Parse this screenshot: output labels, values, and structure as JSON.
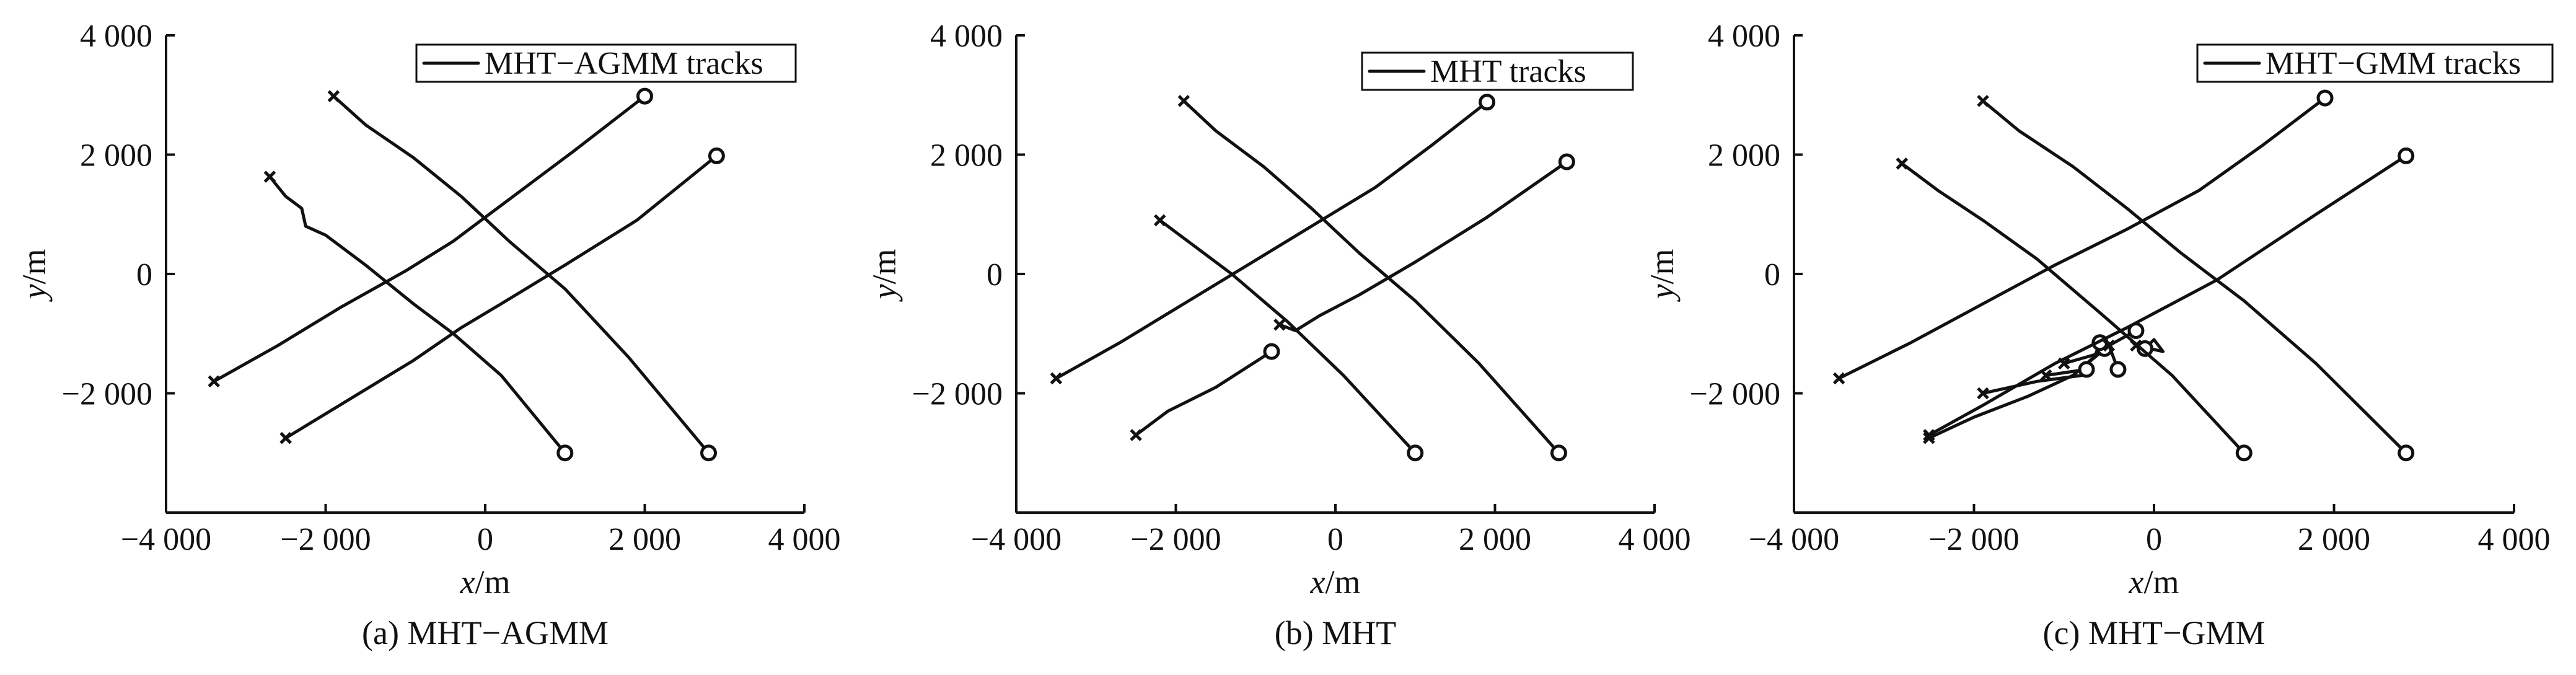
{
  "chart_data": [
    {
      "type": "line",
      "legend": "MHT−AGMM tracks",
      "legend_position": "top-right",
      "caption": "(a) MHT−AGMM",
      "xlabel": "x/m",
      "ylabel": "y/m",
      "xlim": [
        -4000,
        4000
      ],
      "ylim": [
        -4000,
        4000
      ],
      "xticks": [
        -4000,
        -2000,
        0,
        2000,
        4000
      ],
      "yticks": [
        -2000,
        0,
        2000,
        4000
      ],
      "tick_labels": [
        "−4 000",
        "−2 000",
        "0",
        "2 000",
        "4 000"
      ],
      "series": [
        {
          "points": [
            [
              -3400,
              -1800
            ],
            [
              -2600,
              -1200
            ],
            [
              -1800,
              -550
            ],
            [
              -1000,
              50
            ],
            [
              -400,
              550
            ],
            [
              300,
              1250
            ],
            [
              1100,
              2050
            ],
            [
              2000,
              2980
            ]
          ]
        },
        {
          "points": [
            [
              -2500,
              -2750
            ],
            [
              -1700,
              -2100
            ],
            [
              -900,
              -1450
            ],
            [
              -300,
              -900
            ],
            [
              200,
              -500
            ],
            [
              1000,
              150
            ],
            [
              1900,
              900
            ],
            [
              2900,
              1980
            ]
          ]
        },
        {
          "points": [
            [
              -1900,
              2980
            ],
            [
              -1500,
              2500
            ],
            [
              -900,
              1950
            ],
            [
              -300,
              1300
            ],
            [
              300,
              550
            ],
            [
              1000,
              -250
            ],
            [
              1800,
              -1400
            ],
            [
              2800,
              -3000
            ]
          ]
        },
        {
          "points": [
            [
              -2700,
              1630
            ],
            [
              -2500,
              1300
            ],
            [
              -2300,
              1100
            ],
            [
              -2250,
              800
            ],
            [
              -2000,
              650
            ],
            [
              -1500,
              150
            ],
            [
              -900,
              -500
            ],
            [
              -400,
              -1000
            ],
            [
              200,
              -1700
            ],
            [
              1000,
              -3000
            ]
          ]
        }
      ]
    },
    {
      "type": "line",
      "legend": "MHT tracks",
      "legend_position": "top-right",
      "caption": "(b) MHT",
      "xlabel": "x/m",
      "ylabel": "y/m",
      "xlim": [
        -4000,
        4000
      ],
      "ylim": [
        -4000,
        4000
      ],
      "xticks": [
        -4000,
        -2000,
        0,
        2000,
        4000
      ],
      "yticks": [
        -2000,
        0,
        2000,
        4000
      ],
      "tick_labels": [
        "−4 000",
        "−2 000",
        "0",
        "2 000",
        "4 000"
      ],
      "series": [
        {
          "points": [
            [
              -3500,
              -1750
            ],
            [
              -2700,
              -1150
            ],
            [
              -1900,
              -500
            ],
            [
              -1100,
              150
            ],
            [
              -300,
              800
            ],
            [
              500,
              1450
            ],
            [
              1200,
              2150
            ],
            [
              1900,
              2880
            ]
          ]
        },
        {
          "points": [
            [
              -2500,
              -2700
            ],
            [
              -2100,
              -2300
            ],
            [
              -1500,
              -1900
            ],
            [
              -800,
              -1300
            ]
          ]
        },
        {
          "points": [
            [
              -700,
              -850
            ],
            [
              -500,
              -950
            ],
            [
              -200,
              -700
            ],
            [
              300,
              -350
            ],
            [
              1000,
              200
            ],
            [
              1900,
              950
            ],
            [
              2900,
              1880
            ]
          ]
        },
        {
          "points": [
            [
              -1900,
              2900
            ],
            [
              -1500,
              2400
            ],
            [
              -900,
              1800
            ],
            [
              -300,
              1100
            ],
            [
              300,
              350
            ],
            [
              1000,
              -450
            ],
            [
              1800,
              -1500
            ],
            [
              2800,
              -3000
            ]
          ]
        },
        {
          "points": [
            [
              -2200,
              900
            ],
            [
              -1800,
              500
            ],
            [
              -1300,
              0
            ],
            [
              -600,
              -800
            ],
            [
              100,
              -1700
            ],
            [
              1000,
              -3000
            ]
          ]
        }
      ]
    },
    {
      "type": "line",
      "legend": "MHT−GMM tracks",
      "legend_position": "top-right",
      "caption": "(c) MHT−GMM",
      "xlabel": "x/m",
      "ylabel": "y/m",
      "xlim": [
        -4000,
        4000
      ],
      "ylim": [
        -4000,
        4000
      ],
      "xticks": [
        -4000,
        -2000,
        0,
        2000,
        4000
      ],
      "yticks": [
        -2000,
        0,
        2000,
        4000
      ],
      "tick_labels": [
        "−4 000",
        "−2 000",
        "0",
        "2 000",
        "4 000"
      ],
      "series": [
        {
          "points": [
            [
              -3500,
              -1750
            ],
            [
              -2700,
              -1150
            ],
            [
              -1900,
              -500
            ],
            [
              -1100,
              150
            ],
            [
              -300,
              750
            ],
            [
              500,
              1400
            ],
            [
              1200,
              2150
            ],
            [
              1900,
              2950
            ]
          ]
        },
        {
          "points": [
            [
              -2500,
              -2750
            ],
            [
              -2000,
              -2400
            ],
            [
              -1400,
              -2050
            ],
            [
              -900,
              -1700
            ],
            [
              -500,
              -1200
            ],
            [
              -200,
              -950
            ]
          ]
        },
        {
          "points": [
            [
              -1900,
              -2000
            ],
            [
              -1300,
              -1800
            ],
            [
              -800,
              -1700
            ],
            [
              -750,
              -1500
            ],
            [
              -550,
              -1250
            ]
          ]
        },
        {
          "points": [
            [
              -1200,
              -1700
            ],
            [
              -750,
              -1600
            ]
          ]
        },
        {
          "points": [
            [
              -1000,
              -1500
            ],
            [
              -650,
              -1350
            ],
            [
              -600,
              -1150
            ]
          ]
        },
        {
          "points": [
            [
              -200,
              -1200
            ],
            [
              100,
              -1300
            ],
            [
              0,
              -1100
            ],
            [
              -100,
              -1250
            ]
          ]
        },
        {
          "points": [
            [
              -500,
              -1200
            ],
            [
              -400,
              -1600
            ]
          ]
        },
        {
          "points": [
            [
              -1900,
              2900
            ],
            [
              -1500,
              2400
            ],
            [
              -900,
              1800
            ],
            [
              -300,
              1100
            ],
            [
              300,
              350
            ],
            [
              1000,
              -450
            ],
            [
              1800,
              -1500
            ],
            [
              2800,
              -3000
            ]
          ]
        },
        {
          "points": [
            [
              -2800,
              1850
            ],
            [
              -2400,
              1400
            ],
            [
              -1900,
              900
            ],
            [
              -1300,
              250
            ],
            [
              -600,
              -650
            ],
            [
              200,
              -1700
            ],
            [
              1000,
              -3000
            ]
          ]
        },
        {
          "points": [
            [
              -2500,
              -2700
            ],
            [
              -1900,
              -2200
            ],
            [
              -1100,
              -1500
            ],
            [
              -300,
              -900
            ],
            [
              700,
              -100
            ],
            [
              1800,
              1000
            ],
            [
              2800,
              1980
            ]
          ]
        }
      ]
    }
  ]
}
